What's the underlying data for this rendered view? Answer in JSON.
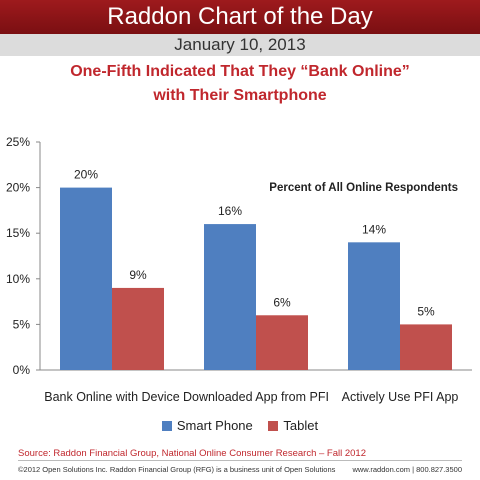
{
  "header": {
    "banner_title": "Raddon Chart of the Day",
    "date": "January 10, 2013"
  },
  "chart_data": {
    "type": "bar",
    "title_lines": [
      "One-Fifth Indicated That They “Bank Online”",
      "with Their Smartphone"
    ],
    "annotation": "Percent of All Online Respondents",
    "categories": [
      "Bank Online with Device",
      "Downloaded App from PFI",
      "Actively Use PFI App"
    ],
    "series": [
      {
        "name": "Smart Phone",
        "color": "#4f7fc0",
        "values": [
          20,
          16,
          14
        ],
        "labels": [
          "20%",
          "16%",
          "14%"
        ]
      },
      {
        "name": "Tablet",
        "color": "#c0504d",
        "values": [
          9,
          6,
          5
        ],
        "labels": [
          "9%",
          "6%",
          "5%"
        ]
      }
    ],
    "ylim": [
      0,
      25
    ],
    "yticks": [
      "0%",
      "5%",
      "10%",
      "15%",
      "20%",
      "25%"
    ],
    "legend_position": "bottom",
    "grid": false
  },
  "footer": {
    "source": "Source: Raddon Financial Group, National Online Consumer Research – Fall 2012",
    "copyright": "©2012 Open Solutions Inc.  Raddon Financial Group (RFG) is a business unit of Open Solutions",
    "contact": "www.raddon.com  |  800.827.3500"
  }
}
